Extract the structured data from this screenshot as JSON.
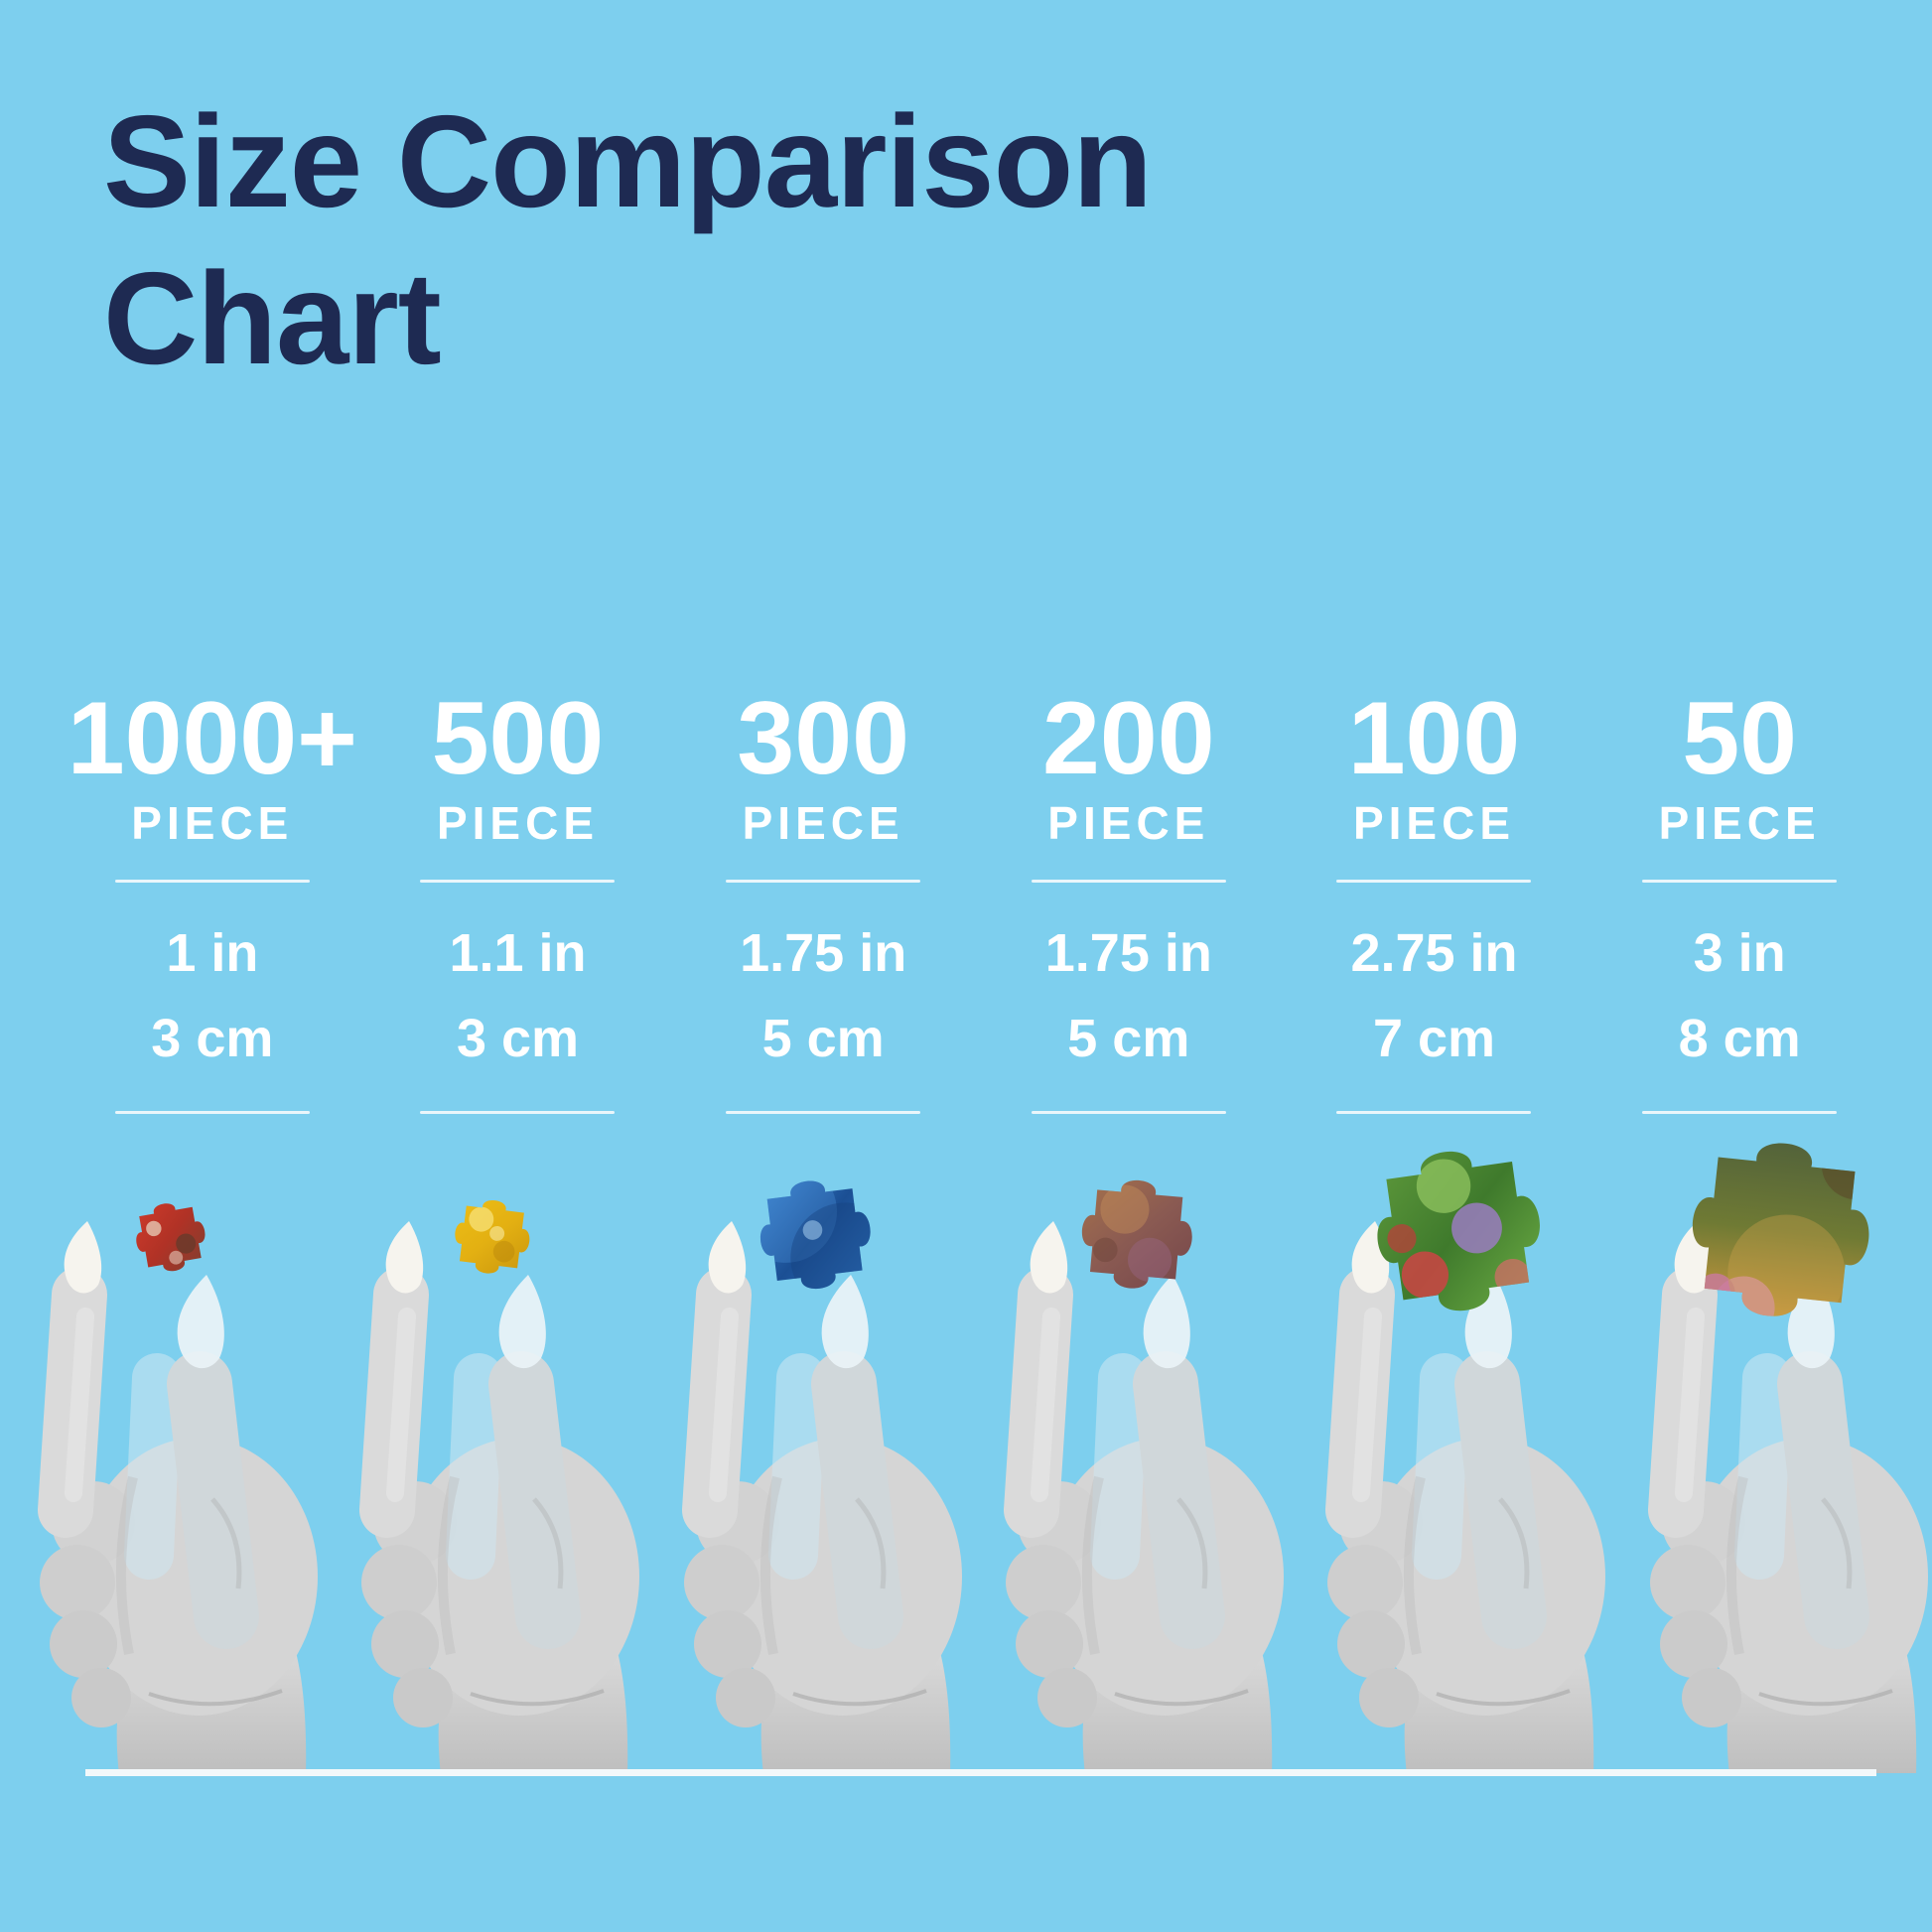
{
  "page": {
    "background_color": "#7DCFEE",
    "title_color": "#1E2A52",
    "text_color": "#FFFFFF"
  },
  "title": {
    "line1": "Size Comparison",
    "line2": "Chart"
  },
  "table": {
    "unit_label": "PIECE",
    "columns": [
      {
        "count": "1000+",
        "inches": "1 in",
        "cm": "3 cm"
      },
      {
        "count": "500",
        "inches": "1.1 in",
        "cm": "3 cm"
      },
      {
        "count": "300",
        "inches": "1.75 in",
        "cm": "5 cm"
      },
      {
        "count": "200",
        "inches": "1.75 in",
        "cm": "5 cm"
      },
      {
        "count": "100",
        "inches": "2.75 in",
        "cm": "7 cm"
      },
      {
        "count": "50",
        "inches": "3 in",
        "cm": "8 cm"
      }
    ]
  },
  "pieces": [
    {
      "name": "red-brown patterned piece",
      "rotation": -10,
      "vertical": false,
      "gradient": [
        "#CF3A2A",
        "#B03226",
        "#7C4030"
      ],
      "accents": [
        [
          0.3,
          0.35,
          0.1,
          "#E8D2BC",
          0.75
        ],
        [
          0.68,
          0.62,
          0.13,
          "#6B3A2A",
          0.85
        ],
        [
          0.52,
          0.78,
          0.09,
          "#DFBCAC",
          0.65
        ]
      ]
    },
    {
      "name": "golden yellow piece",
      "rotation": 7,
      "vertical": false,
      "gradient": [
        "#EDBE16",
        "#E3B012",
        "#C9960E"
      ],
      "accents": [
        [
          0.34,
          0.3,
          0.15,
          "#F7E27A",
          0.75
        ],
        [
          0.66,
          0.66,
          0.13,
          "#B8860B",
          0.45
        ],
        [
          0.55,
          0.45,
          0.09,
          "#FBF0B0",
          0.55
        ]
      ]
    },
    {
      "name": "blue striped piece",
      "rotation": -7,
      "vertical": false,
      "gradient": [
        "#3E86D2",
        "#1B4F94",
        "#2F74C0"
      ],
      "accents": [
        [
          0.28,
          0.28,
          0.42,
          "#4A90D8",
          0.35
        ],
        [
          0.72,
          0.72,
          0.45,
          "#16407E",
          0.4
        ],
        [
          0.48,
          0.46,
          0.08,
          "#A8D0F0",
          0.55
        ]
      ]
    },
    {
      "name": "rust brown piece",
      "rotation": 5,
      "vertical": false,
      "gradient": [
        "#A5714C",
        "#8A5A52",
        "#75464A"
      ],
      "accents": [
        [
          0.38,
          0.3,
          0.2,
          "#C08A5A",
          0.5
        ],
        [
          0.62,
          0.7,
          0.18,
          "#9A6A8A",
          0.4
        ],
        [
          0.25,
          0.65,
          0.1,
          "#6A4238",
          0.45
        ]
      ]
    },
    {
      "name": "green garden piece with flowers",
      "rotation": -8,
      "vertical": false,
      "gradient": [
        "#5F9A3C",
        "#3F7A2C",
        "#6FAF46"
      ],
      "accents": [
        [
          0.28,
          0.72,
          0.13,
          "#CC4444",
          0.85
        ],
        [
          0.6,
          0.5,
          0.14,
          "#9A7CC0",
          0.85
        ],
        [
          0.45,
          0.24,
          0.15,
          "#8CC05E",
          0.8
        ],
        [
          0.76,
          0.8,
          0.1,
          "#D86A6A",
          0.7
        ],
        [
          0.18,
          0.5,
          0.08,
          "#C03A3A",
          0.7
        ]
      ]
    },
    {
      "name": "landscape piece with pink flowers",
      "rotation": 6,
      "vertical": true,
      "gradient": [
        "#53633A",
        "#6F7A34",
        "#C9973D"
      ],
      "accents": [
        [
          0.85,
          0.12,
          0.18,
          "#5A4A28",
          0.6
        ],
        [
          0.35,
          0.92,
          0.16,
          "#D88FAB",
          0.92
        ],
        [
          0.2,
          0.86,
          0.1,
          "#C87A9A",
          0.85
        ],
        [
          0.55,
          0.72,
          0.3,
          "#C9A04A",
          0.4
        ]
      ]
    }
  ],
  "chart_data": {
    "type": "table",
    "title": "Size Comparison Chart",
    "categories": [
      "1000+",
      "500",
      "300",
      "200",
      "100",
      "50"
    ],
    "category_unit": "PIECE",
    "series": [
      {
        "name": "Piece size (inches)",
        "values": [
          1,
          1.1,
          1.75,
          1.75,
          2.75,
          3
        ]
      },
      {
        "name": "Piece size (cm)",
        "values": [
          3,
          3,
          5,
          5,
          7,
          8
        ]
      }
    ],
    "notes": "Six grayscale hands each pinch a jigsaw puzzle piece; piece size grows as puzzle piece-count decreases."
  }
}
